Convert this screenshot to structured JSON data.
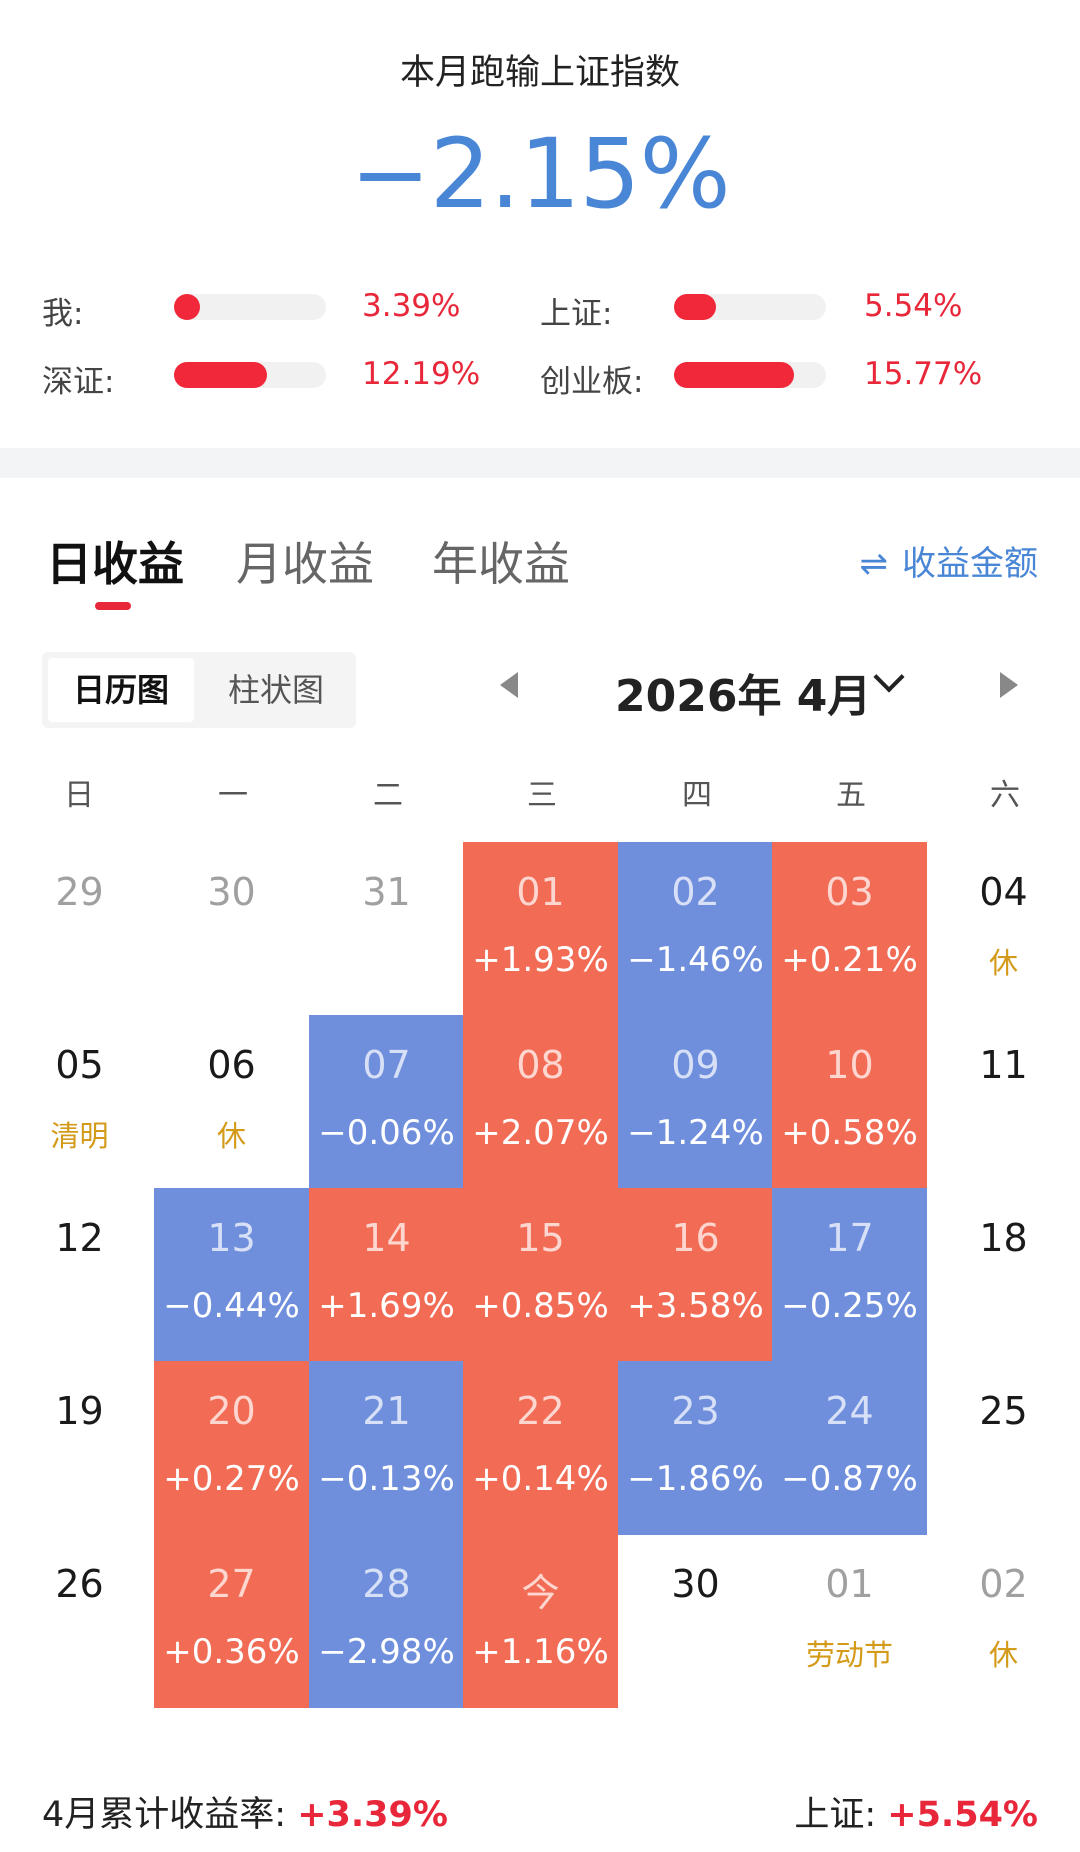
{
  "summary": {
    "title": "本月跑输上证指数",
    "value": "−2.15%",
    "value_color": "#4a86d6"
  },
  "comparisons": [
    {
      "label": "我:",
      "pct": "3.39%",
      "value": 3.39
    },
    {
      "label": "上证:",
      "pct": "5.54%",
      "value": 5.54
    },
    {
      "label": "深证:",
      "pct": "12.19%",
      "value": 12.19
    },
    {
      "label": "创业板:",
      "pct": "15.77%",
      "value": 15.77
    }
  ],
  "tabs": [
    {
      "label": "日收益",
      "active": true
    },
    {
      "label": "月收益",
      "active": false
    },
    {
      "label": "年收益",
      "active": false
    }
  ],
  "amount_toggle": {
    "icon": "swap-icon",
    "glyph": "⇌",
    "label": "收益金额"
  },
  "view_switch": {
    "calendar": "日历图",
    "bar": "柱状图"
  },
  "month_nav": {
    "label": "2026年 4月"
  },
  "weekdays": [
    "日",
    "一",
    "二",
    "三",
    "四",
    "五",
    "六"
  ],
  "colors": {
    "up": "#f26b55",
    "down": "#6f8fdd",
    "holiday": "#d49a1a",
    "positive_text": "#e8283a"
  },
  "calendar": [
    {
      "day": "29",
      "kind": "gray"
    },
    {
      "day": "30",
      "kind": "gray"
    },
    {
      "day": "31",
      "kind": "gray"
    },
    {
      "day": "01",
      "kind": "up",
      "sub": "+1.93%"
    },
    {
      "day": "02",
      "kind": "down",
      "sub": "−1.46%"
    },
    {
      "day": "03",
      "kind": "up",
      "sub": "+0.21%"
    },
    {
      "day": "04",
      "kind": "cur",
      "sub": "休",
      "holiday": true
    },
    {
      "day": "05",
      "kind": "cur",
      "sub": "清明",
      "holiday": true
    },
    {
      "day": "06",
      "kind": "cur",
      "sub": "休",
      "holiday": true
    },
    {
      "day": "07",
      "kind": "down",
      "sub": "−0.06%"
    },
    {
      "day": "08",
      "kind": "up",
      "sub": "+2.07%"
    },
    {
      "day": "09",
      "kind": "down",
      "sub": "−1.24%"
    },
    {
      "day": "10",
      "kind": "up",
      "sub": "+0.58%"
    },
    {
      "day": "11",
      "kind": "cur"
    },
    {
      "day": "12",
      "kind": "cur"
    },
    {
      "day": "13",
      "kind": "down",
      "sub": "−0.44%"
    },
    {
      "day": "14",
      "kind": "up",
      "sub": "+1.69%"
    },
    {
      "day": "15",
      "kind": "up",
      "sub": "+0.85%"
    },
    {
      "day": "16",
      "kind": "up",
      "sub": "+3.58%"
    },
    {
      "day": "17",
      "kind": "down",
      "sub": "−0.25%"
    },
    {
      "day": "18",
      "kind": "cur"
    },
    {
      "day": "19",
      "kind": "cur"
    },
    {
      "day": "20",
      "kind": "up",
      "sub": "+0.27%"
    },
    {
      "day": "21",
      "kind": "down",
      "sub": "−0.13%"
    },
    {
      "day": "22",
      "kind": "up",
      "sub": "+0.14%"
    },
    {
      "day": "23",
      "kind": "down",
      "sub": "−1.86%"
    },
    {
      "day": "24",
      "kind": "down",
      "sub": "−0.87%"
    },
    {
      "day": "25",
      "kind": "cur"
    },
    {
      "day": "26",
      "kind": "cur"
    },
    {
      "day": "27",
      "kind": "up",
      "sub": "+0.36%"
    },
    {
      "day": "28",
      "kind": "down",
      "sub": "−2.98%"
    },
    {
      "day": "今",
      "kind": "up",
      "sub": "+1.16%"
    },
    {
      "day": "30",
      "kind": "cur"
    },
    {
      "day": "01",
      "kind": "gray",
      "sub": "劳动节",
      "holiday": true
    },
    {
      "day": "02",
      "kind": "gray",
      "sub": "休",
      "holiday": true
    }
  ],
  "footer": {
    "cumulative_label": "4月累计收益率:",
    "cumulative_value": "+3.39%",
    "index_label": "上证:",
    "index_value": "+5.54%"
  }
}
